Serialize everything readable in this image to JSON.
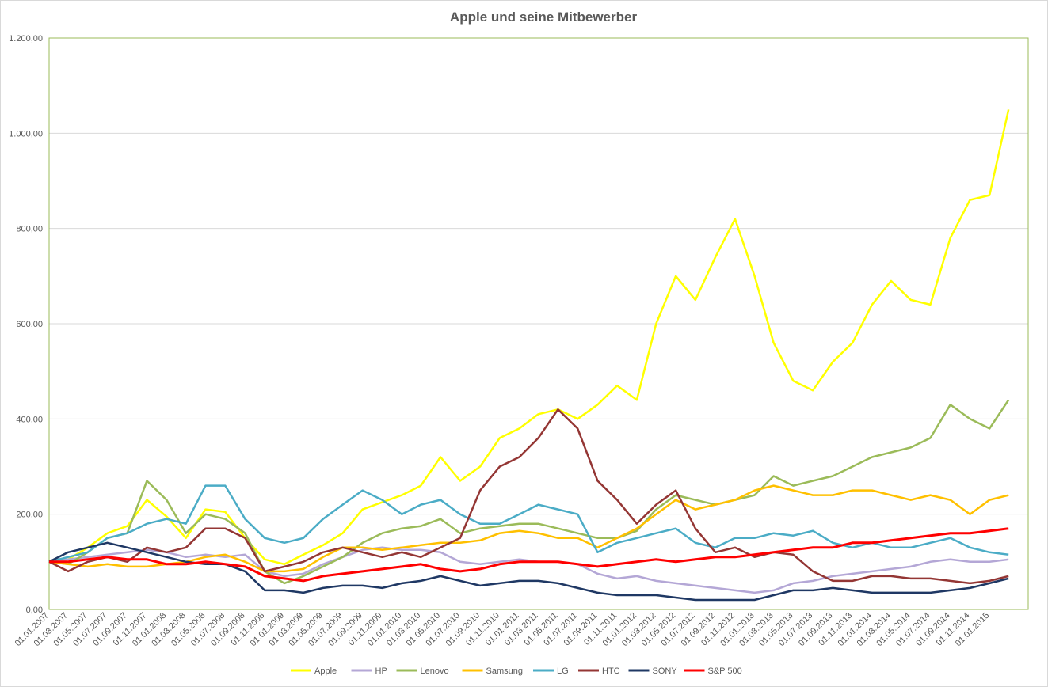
{
  "chart_data": {
    "type": "line",
    "title": "Apple und seine Mitbewerber",
    "xlabel": "",
    "ylabel": "",
    "ylim": [
      0,
      1200
    ],
    "grid": true,
    "legend_position": "bottom",
    "y_ticks": [
      "0,00",
      "200,00",
      "400,00",
      "600,00",
      "800,00",
      "1.000,00",
      "1.200,00"
    ],
    "x_ticks": [
      "01.01.2007",
      "01.03.2007",
      "01.05.2007",
      "01.07.2007",
      "01.09.2007",
      "01.11.2007",
      "01.01.2008",
      "01.03.2008",
      "01.05.2008",
      "01.07.2008",
      "01.09.2008",
      "01.11.2008",
      "01.01.2009",
      "01.03.2009",
      "01.05.2009",
      "01.07.2009",
      "01.09.2009",
      "01.11.2009",
      "01.01.2010",
      "01.03.2010",
      "01.05.2010",
      "01.07.2010",
      "01.09.2010",
      "01.11.2010",
      "01.01.2011",
      "01.03.2011",
      "01.05.2011",
      "01.07.2011",
      "01.09.2011",
      "01.11.2011",
      "01.01.2012",
      "01.03.2012",
      "01.05.2012",
      "01.07.2012",
      "01.09.2012",
      "01.11.2012",
      "01.01.2013",
      "01.03.2013",
      "01.05.2013",
      "01.07.2013",
      "01.09.2013",
      "01.11.2013",
      "01.01.2014",
      "01.03.2014",
      "01.05.2014",
      "01.07.2014",
      "01.09.2014",
      "01.11.2014",
      "01.01.2015"
    ],
    "x_dates": [
      "2007-01-01",
      "2007-03-01",
      "2007-05-01",
      "2007-07-01",
      "2007-09-01",
      "2007-11-01",
      "2008-01-01",
      "2008-03-01",
      "2008-05-01",
      "2008-07-01",
      "2008-09-01",
      "2008-11-01",
      "2009-01-01",
      "2009-03-01",
      "2009-05-01",
      "2009-07-01",
      "2009-09-01",
      "2009-11-01",
      "2010-01-01",
      "2010-03-01",
      "2010-05-01",
      "2010-07-01",
      "2010-09-01",
      "2010-11-01",
      "2011-01-01",
      "2011-03-01",
      "2011-05-01",
      "2011-07-01",
      "2011-09-01",
      "2011-11-01",
      "2012-01-01",
      "2012-03-01",
      "2012-05-01",
      "2012-07-01",
      "2012-09-01",
      "2012-11-01",
      "2013-01-01",
      "2013-03-01",
      "2013-05-01",
      "2013-07-01",
      "2013-09-01",
      "2013-11-01",
      "2014-01-01",
      "2014-03-01",
      "2014-05-01",
      "2014-07-01",
      "2014-09-01",
      "2014-11-01",
      "2015-01-01",
      "2015-03-01"
    ],
    "series": [
      {
        "name": "Apple",
        "color": "#ffff00",
        "values": [
          100,
          105,
          130,
          160,
          175,
          230,
          195,
          150,
          210,
          205,
          150,
          105,
          95,
          115,
          135,
          160,
          210,
          225,
          240,
          260,
          320,
          270,
          300,
          360,
          380,
          410,
          420,
          400,
          430,
          470,
          440,
          600,
          700,
          650,
          740,
          820,
          700,
          560,
          480,
          460,
          520,
          560,
          640,
          690,
          650,
          640,
          780,
          860,
          870,
          1050
        ]
      },
      {
        "name": "HP",
        "color": "#b4a7d6",
        "values": [
          100,
          105,
          110,
          115,
          120,
          125,
          120,
          110,
          115,
          110,
          115,
          80,
          70,
          75,
          95,
          110,
          125,
          130,
          125,
          125,
          120,
          100,
          95,
          100,
          105,
          100,
          100,
          95,
          75,
          65,
          70,
          60,
          55,
          50,
          45,
          40,
          35,
          40,
          55,
          60,
          70,
          75,
          80,
          85,
          90,
          100,
          105,
          100,
          100,
          105
        ]
      },
      {
        "name": "Lenovo",
        "color": "#9bbb59",
        "values": [
          100,
          95,
          120,
          150,
          160,
          270,
          230,
          160,
          200,
          190,
          160,
          80,
          55,
          70,
          90,
          110,
          140,
          160,
          170,
          175,
          190,
          160,
          170,
          175,
          180,
          180,
          170,
          160,
          150,
          150,
          165,
          210,
          240,
          230,
          220,
          230,
          240,
          280,
          260,
          270,
          280,
          300,
          320,
          330,
          340,
          360,
          430,
          400,
          380,
          440
        ]
      },
      {
        "name": "Samsung",
        "color": "#ffc000",
        "values": [
          100,
          95,
          90,
          95,
          90,
          90,
          95,
          100,
          110,
          115,
          100,
          80,
          80,
          85,
          110,
          130,
          130,
          125,
          130,
          135,
          140,
          140,
          145,
          160,
          165,
          160,
          150,
          150,
          130,
          150,
          170,
          200,
          230,
          210,
          220,
          230,
          250,
          260,
          250,
          240,
          240,
          250,
          250,
          240,
          230,
          240,
          230,
          200,
          230,
          240
        ]
      },
      {
        "name": "LG",
        "color": "#4bacc6",
        "values": [
          100,
          110,
          120,
          150,
          160,
          180,
          190,
          180,
          260,
          260,
          190,
          150,
          140,
          150,
          190,
          220,
          250,
          230,
          200,
          220,
          230,
          200,
          180,
          180,
          200,
          220,
          210,
          200,
          120,
          140,
          150,
          160,
          170,
          140,
          130,
          150,
          150,
          160,
          155,
          165,
          140,
          130,
          140,
          130,
          130,
          140,
          150,
          130,
          120,
          115
        ]
      },
      {
        "name": "HTC",
        "color": "#943634",
        "values": [
          100,
          80,
          100,
          110,
          100,
          130,
          120,
          130,
          170,
          170,
          150,
          80,
          90,
          100,
          120,
          130,
          120,
          110,
          120,
          110,
          130,
          150,
          250,
          300,
          320,
          360,
          420,
          380,
          270,
          230,
          180,
          220,
          250,
          170,
          120,
          130,
          110,
          120,
          115,
          80,
          60,
          60,
          70,
          70,
          65,
          65,
          60,
          55,
          60,
          70
        ]
      },
      {
        "name": "SONY",
        "color": "#1f3864",
        "values": [
          100,
          120,
          130,
          140,
          130,
          120,
          110,
          100,
          95,
          95,
          80,
          40,
          40,
          35,
          45,
          50,
          50,
          45,
          55,
          60,
          70,
          60,
          50,
          55,
          60,
          60,
          55,
          45,
          35,
          30,
          30,
          30,
          25,
          20,
          20,
          20,
          20,
          30,
          40,
          40,
          45,
          40,
          35,
          35,
          35,
          35,
          40,
          45,
          55,
          65
        ]
      },
      {
        "name": "S&P 500",
        "color": "#ff0000",
        "values": [
          100,
          100,
          105,
          110,
          105,
          105,
          95,
          95,
          100,
          95,
          90,
          70,
          65,
          60,
          70,
          75,
          80,
          85,
          90,
          95,
          85,
          80,
          85,
          95,
          100,
          100,
          100,
          95,
          90,
          95,
          100,
          105,
          100,
          105,
          110,
          110,
          115,
          120,
          125,
          130,
          130,
          140,
          140,
          145,
          150,
          155,
          160,
          160,
          165,
          170
        ]
      }
    ]
  }
}
